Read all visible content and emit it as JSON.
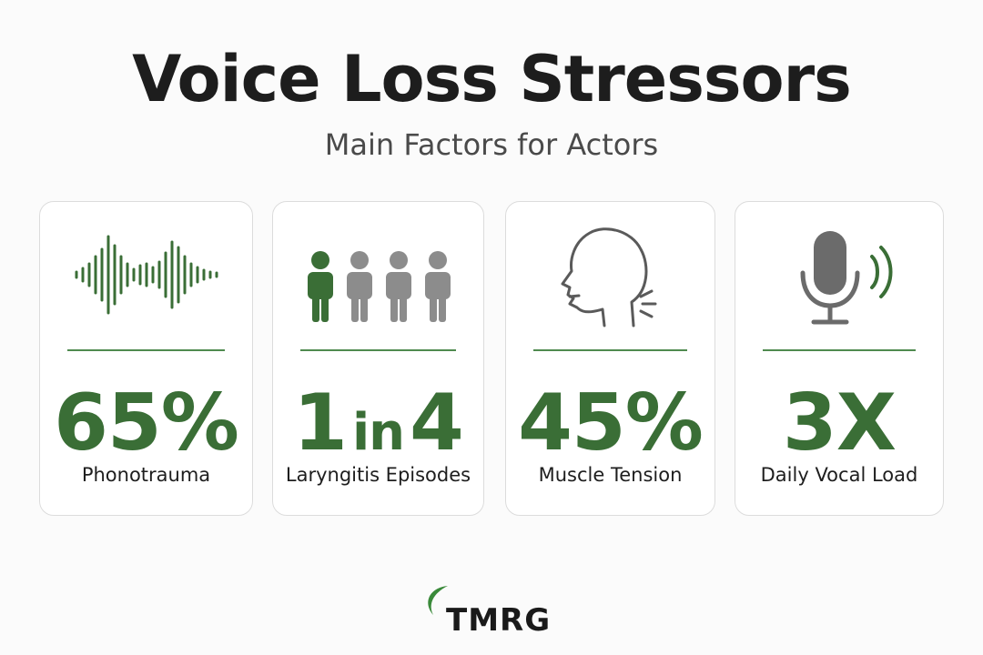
{
  "header": {
    "title": "Voice Loss Stressors",
    "subtitle": "Main Factors for Actors"
  },
  "cards": [
    {
      "icon": "sound-wave-icon",
      "value": "65%",
      "label": "Phonotrauma"
    },
    {
      "icon": "people-icon",
      "value_part1": "1",
      "value_part2": "in",
      "value_part3": "4",
      "label": "Laryngitis Episodes"
    },
    {
      "icon": "head-profile-icon",
      "value": "45%",
      "label": "Muscle Tension"
    },
    {
      "icon": "microphone-icon",
      "value": "3X",
      "label": "Daily Vocal Load"
    }
  ],
  "logo": {
    "text": "TMRG"
  },
  "colors": {
    "accent_green": "#3a6e36",
    "icon_gray": "#8c8c8c",
    "card_border": "#dcdcdc"
  }
}
